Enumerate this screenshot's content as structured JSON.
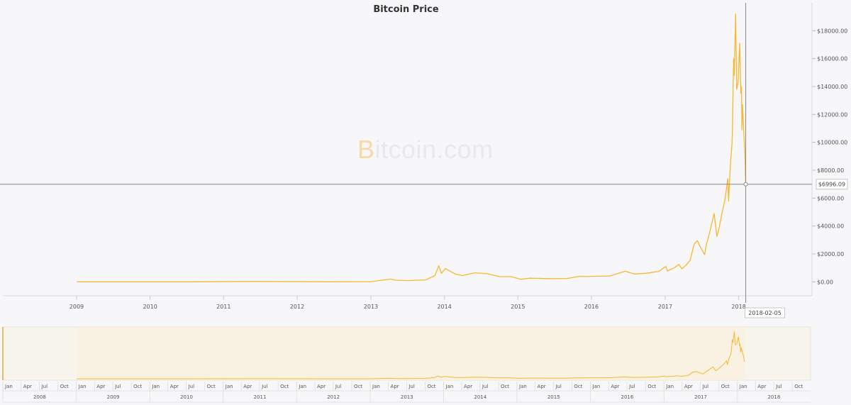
{
  "chart_data": {
    "type": "line",
    "title": "Bitcoin Price",
    "watermark": {
      "mark": "B",
      "text": "itcoin.com"
    },
    "series": [
      {
        "color": "#f7b731",
        "points": [
          [
            "2009-01-03",
            0
          ],
          [
            "2010-07-01",
            0.05
          ],
          [
            "2011-06-08",
            30
          ],
          [
            "2012-06-01",
            5
          ],
          [
            "2013-01-01",
            13
          ],
          [
            "2013-04-10",
            200
          ],
          [
            "2013-05-01",
            120
          ],
          [
            "2013-07-01",
            90
          ],
          [
            "2013-10-01",
            140
          ],
          [
            "2013-11-15",
            450
          ],
          [
            "2013-12-04",
            1150
          ],
          [
            "2013-12-18",
            600
          ],
          [
            "2014-01-05",
            950
          ],
          [
            "2014-02-25",
            550
          ],
          [
            "2014-04-01",
            450
          ],
          [
            "2014-06-01",
            650
          ],
          [
            "2014-08-01",
            580
          ],
          [
            "2014-10-01",
            380
          ],
          [
            "2014-12-01",
            370
          ],
          [
            "2015-01-14",
            180
          ],
          [
            "2015-03-01",
            260
          ],
          [
            "2015-06-01",
            230
          ],
          [
            "2015-09-01",
            235
          ],
          [
            "2015-11-05",
            400
          ],
          [
            "2015-12-01",
            380
          ],
          [
            "2016-01-15",
            400
          ],
          [
            "2016-04-01",
            420
          ],
          [
            "2016-06-17",
            760
          ],
          [
            "2016-08-01",
            560
          ],
          [
            "2016-10-01",
            615
          ],
          [
            "2016-12-01",
            750
          ],
          [
            "2017-01-04",
            1100
          ],
          [
            "2017-01-12",
            780
          ],
          [
            "2017-02-15",
            1000
          ],
          [
            "2017-03-10",
            1250
          ],
          [
            "2017-03-25",
            930
          ],
          [
            "2017-04-15",
            1200
          ],
          [
            "2017-05-05",
            1550
          ],
          [
            "2017-05-25",
            2700
          ],
          [
            "2017-06-10",
            2950
          ],
          [
            "2017-06-25",
            2500
          ],
          [
            "2017-07-16",
            1950
          ],
          [
            "2017-07-25",
            2700
          ],
          [
            "2017-08-05",
            3250
          ],
          [
            "2017-08-20",
            4150
          ],
          [
            "2017-09-01",
            4900
          ],
          [
            "2017-09-15",
            3250
          ],
          [
            "2017-09-25",
            3800
          ],
          [
            "2017-10-10",
            4900
          ],
          [
            "2017-10-25",
            5900
          ],
          [
            "2017-11-08",
            7400
          ],
          [
            "2017-11-12",
            5800
          ],
          [
            "2017-11-20",
            8200
          ],
          [
            "2017-11-29",
            9900
          ],
          [
            "2017-12-01",
            10800
          ],
          [
            "2017-12-07",
            16000
          ],
          [
            "2017-12-10",
            14800
          ],
          [
            "2017-12-17",
            19200
          ],
          [
            "2017-12-22",
            13800
          ],
          [
            "2017-12-25",
            14000
          ],
          [
            "2017-12-29",
            14300
          ],
          [
            "2018-01-06",
            17100
          ],
          [
            "2018-01-12",
            13500
          ],
          [
            "2018-01-15",
            14000
          ],
          [
            "2018-01-17",
            10900
          ],
          [
            "2018-01-20",
            12700
          ],
          [
            "2018-01-25",
            11200
          ],
          [
            "2018-02-01",
            9100
          ],
          [
            "2018-02-05",
            6996.09
          ]
        ]
      }
    ],
    "y_axis": {
      "position": "right",
      "min": -1000,
      "max": 20000,
      "ticks": [
        0,
        2000,
        4000,
        6000,
        8000,
        10000,
        12000,
        14000,
        16000,
        18000
      ],
      "tick_labels": [
        "$0.00",
        "$2000.00",
        "$4000.00",
        "$6000.00",
        "$8000.00",
        "$10000.00",
        "$12000.00",
        "$14000.00",
        "$16000.00",
        "$18000.00"
      ]
    },
    "x_axis": {
      "type": "date",
      "min": "2008-01-01",
      "max": "2018-12-31",
      "tick_labels": [
        "2009",
        "2010",
        "2011",
        "2012",
        "2013",
        "2014",
        "2015",
        "2016",
        "2017",
        "2018"
      ]
    },
    "crosshair": {
      "date": "2018-02-05",
      "value": 6996.09,
      "value_label": "$6996.09",
      "date_label": "2018-02-05"
    },
    "navigator": {
      "x_min": "2008-01-01",
      "x_max": "2018-12-31",
      "selected_from": "2009-01-03",
      "selected_to": "2018-02-05",
      "month_labels": [
        "Jan",
        "Apr",
        "Jul",
        "Oct"
      ],
      "year_labels": [
        "2008",
        "2009",
        "2010",
        "2011",
        "2012",
        "2013",
        "2014",
        "2015",
        "2016",
        "2017",
        "2018"
      ]
    }
  }
}
